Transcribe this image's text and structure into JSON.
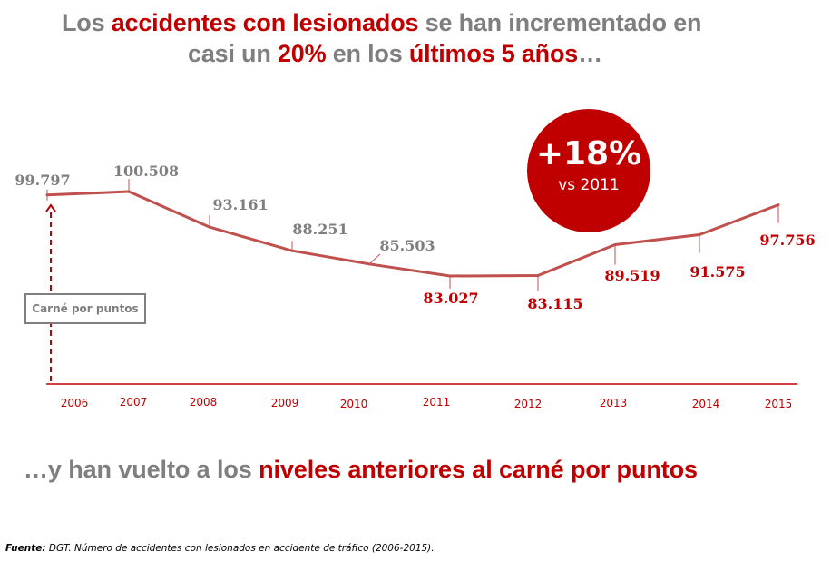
{
  "header": {
    "line1": [
      {
        "text": "Los ",
        "highlight": false
      },
      {
        "text": "accidentes con lesionados",
        "highlight": true
      },
      {
        "text": " se han incrementado en",
        "highlight": false
      }
    ],
    "line2": [
      {
        "text": "casi un ",
        "highlight": false
      },
      {
        "text": "20%",
        "highlight": true
      },
      {
        "text": " en los ",
        "highlight": false
      },
      {
        "text": "últimos 5 años",
        "highlight": true
      },
      {
        "text": "…",
        "highlight": false
      }
    ]
  },
  "badge": {
    "value": "+18%",
    "caption": "vs 2011"
  },
  "annotation": {
    "label": "Carné por puntos"
  },
  "subtitle": [
    {
      "text": "…y han vuelto a los ",
      "highlight": false
    },
    {
      "text": "niveles anteriores al carné por puntos",
      "highlight": true
    }
  ],
  "source": {
    "label": "Fuente:",
    "text": " DGT. Número de accidentes con lesionados en accidente de tráfico (2006-2015)."
  },
  "colors": {
    "accent": "#c00000",
    "line": "#c0504d",
    "muted": "#7f7f7f"
  },
  "chart_data": {
    "type": "line",
    "title": "",
    "xlabel": "",
    "ylabel": "",
    "categories": [
      "2006",
      "2007",
      "2008",
      "2009",
      "2010",
      "2011",
      "2012",
      "2013",
      "2014",
      "2015"
    ],
    "series": [
      {
        "name": "Accidentes con lesionados",
        "values": [
          99797,
          100508,
          93161,
          88251,
          85503,
          83027,
          83115,
          89519,
          91575,
          97756
        ],
        "labels": [
          "99.797",
          "100.508",
          "93.161",
          "88.251",
          "85.503",
          "83.027",
          "83.115",
          "89.519",
          "91.575",
          "97.756"
        ]
      }
    ],
    "ylim": [
      60000,
      102000
    ],
    "grid": false,
    "legend": "none"
  }
}
